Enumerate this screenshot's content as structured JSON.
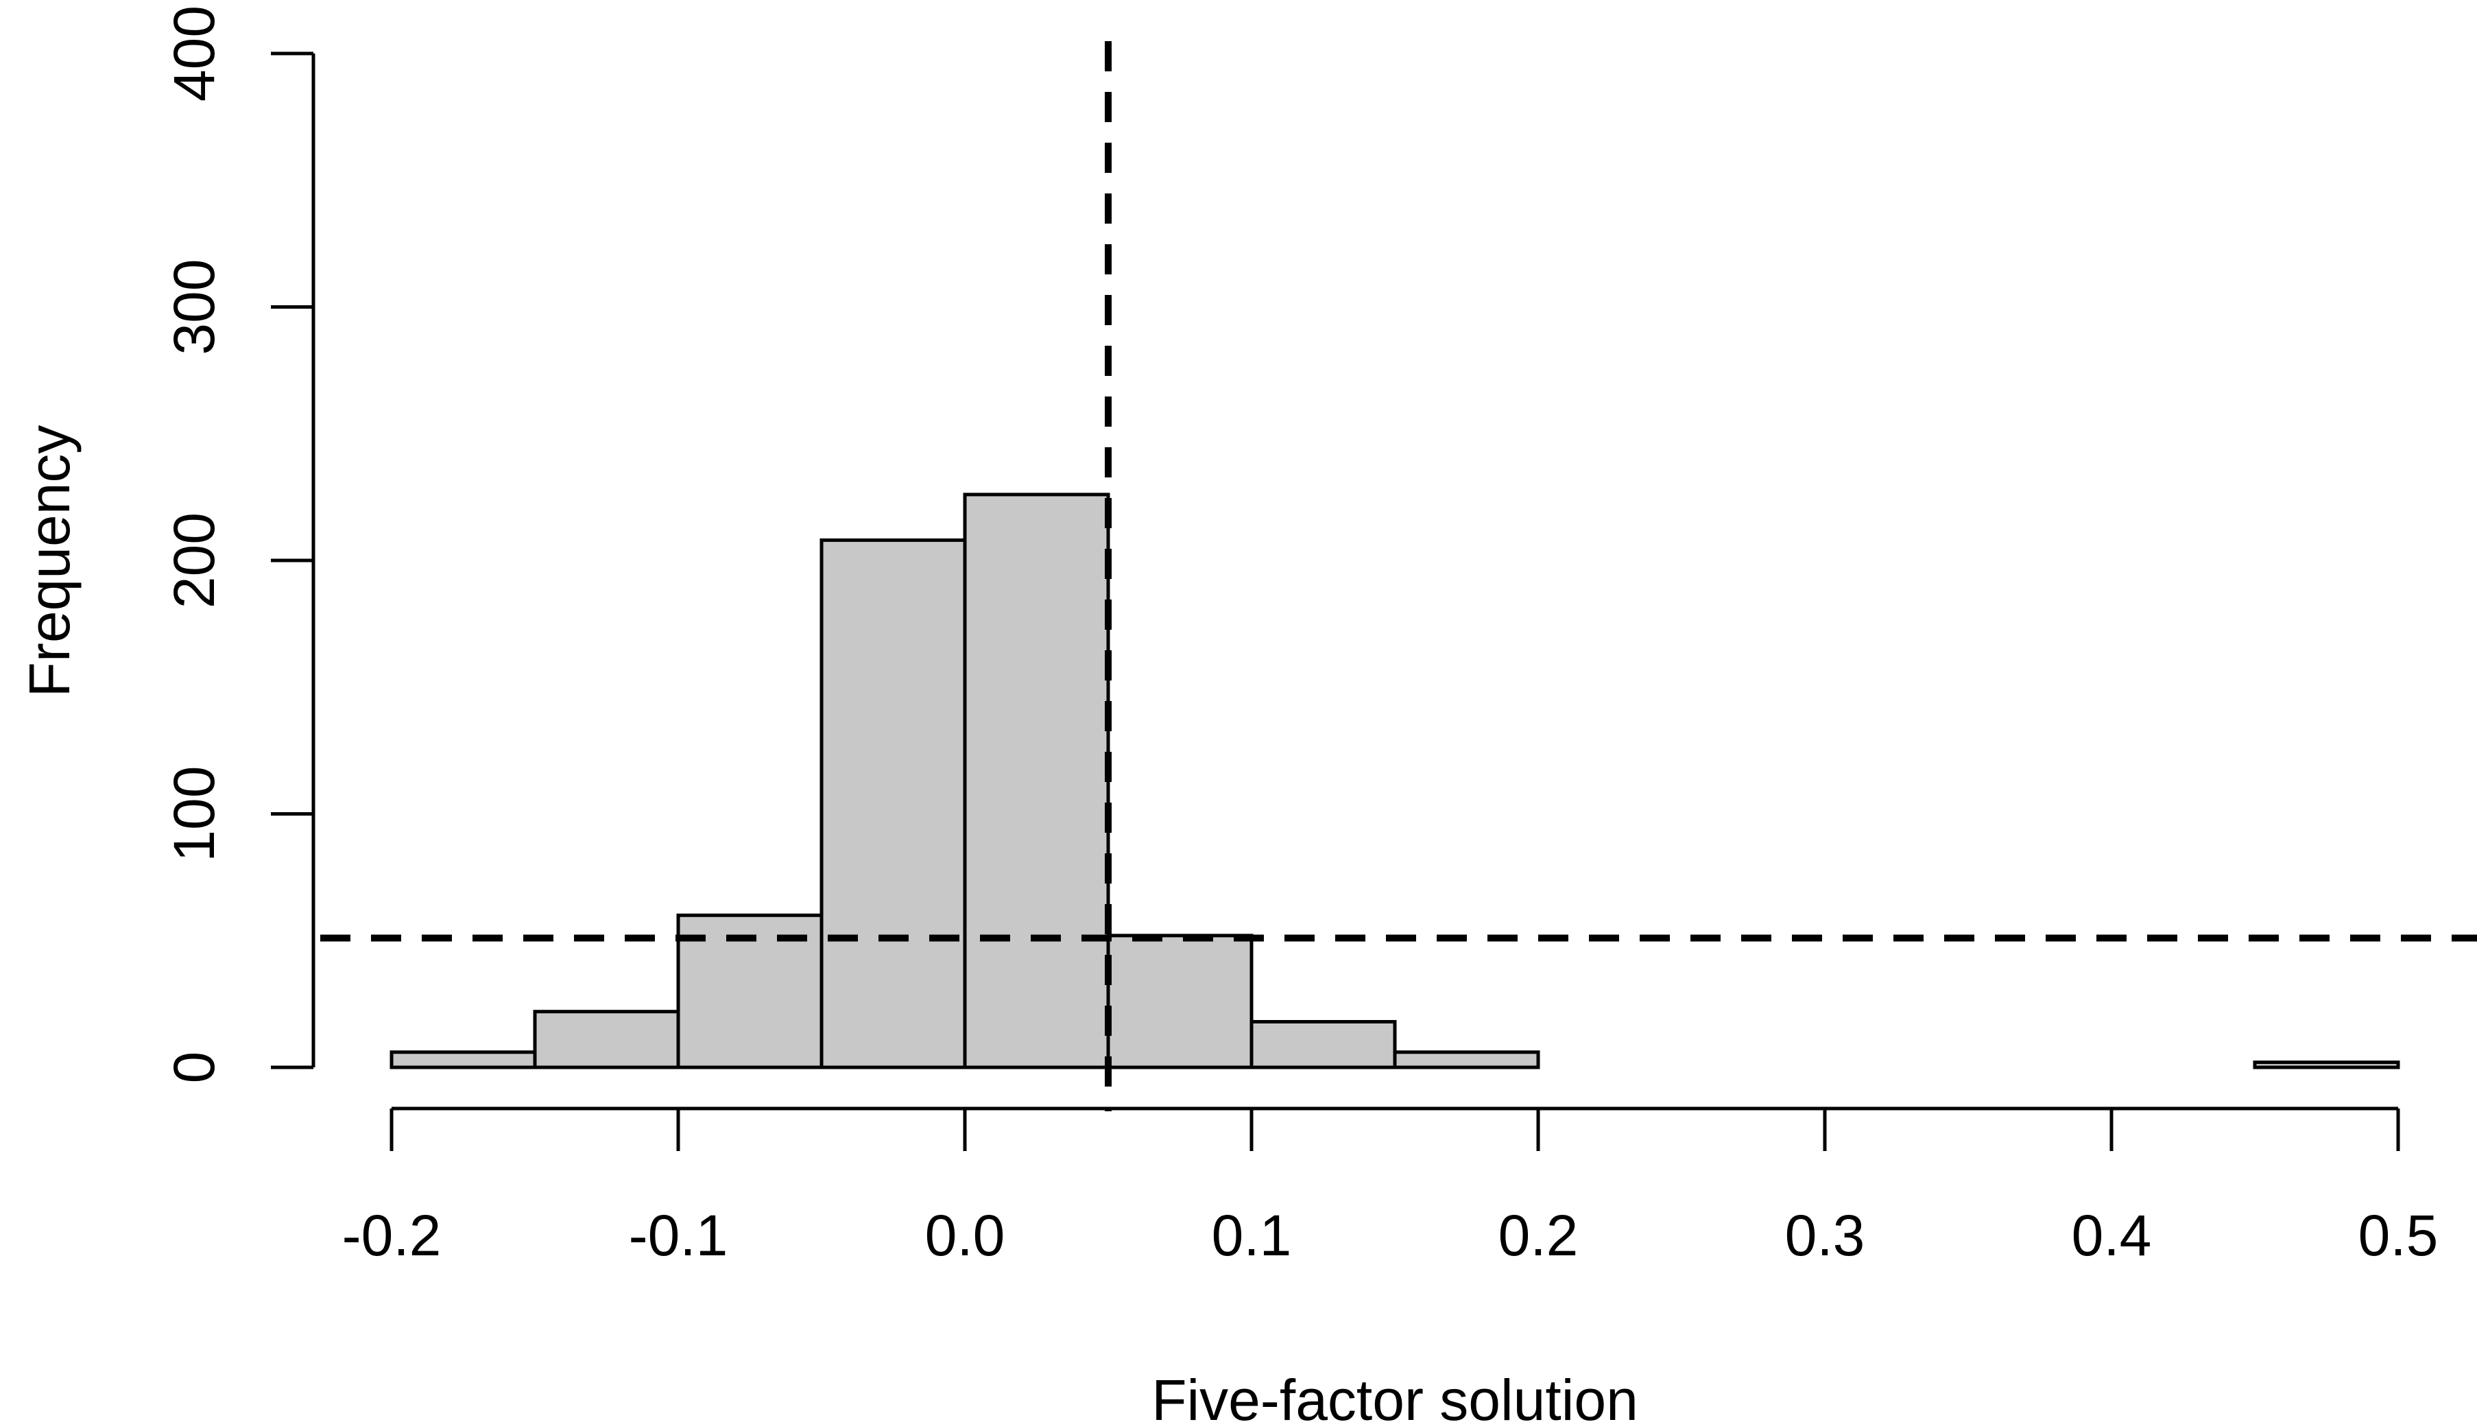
{
  "chart_data": {
    "type": "bar",
    "subtype": "histogram",
    "xlabel": "Five-factor solution",
    "ylabel": "Frequency",
    "xlim": [
      -0.2,
      0.5
    ],
    "ylim": [
      0,
      400
    ],
    "x_ticks": [
      "-0.2",
      "-0.1",
      "0.0",
      "0.1",
      "0.2",
      "0.3",
      "0.4",
      "0.5"
    ],
    "y_ticks": [
      "0",
      "100",
      "200",
      "300",
      "400"
    ],
    "bins": [
      {
        "x0": -0.2,
        "x1": -0.15,
        "count": 6
      },
      {
        "x0": -0.15,
        "x1": -0.1,
        "count": 22
      },
      {
        "x0": -0.1,
        "x1": -0.05,
        "count": 60
      },
      {
        "x0": -0.05,
        "x1": 0.0,
        "count": 208
      },
      {
        "x0": 0.0,
        "x1": 0.05,
        "count": 226
      },
      {
        "x0": 0.05,
        "x1": 0.1,
        "count": 52
      },
      {
        "x0": 0.1,
        "x1": 0.15,
        "count": 18
      },
      {
        "x0": 0.15,
        "x1": 0.2,
        "count": 6
      },
      {
        "x0": 0.2,
        "x1": 0.25,
        "count": 0
      },
      {
        "x0": 0.25,
        "x1": 0.3,
        "count": 0
      },
      {
        "x0": 0.3,
        "x1": 0.35,
        "count": 0
      },
      {
        "x0": 0.35,
        "x1": 0.4,
        "count": 0
      },
      {
        "x0": 0.4,
        "x1": 0.45,
        "count": 0
      },
      {
        "x0": 0.45,
        "x1": 0.5,
        "count": 2
      }
    ],
    "reference_lines": {
      "vertical_x": 0.05,
      "horizontal_y": 51
    },
    "bar_color": "#c8c8c8",
    "grid": false
  }
}
